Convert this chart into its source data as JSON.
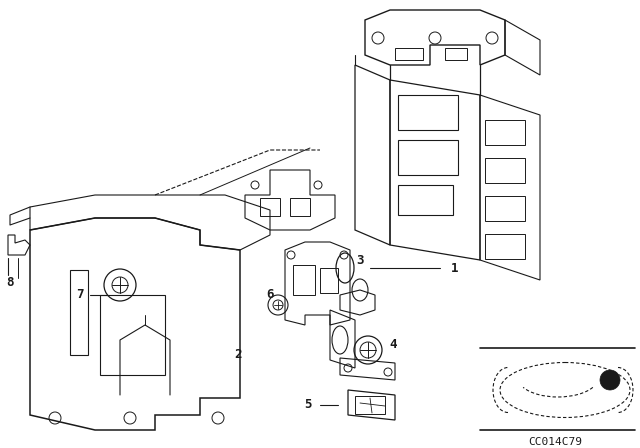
{
  "bg_color": "#ffffff",
  "line_color": "#1a1a1a",
  "part_code": "CC014C79",
  "fig_width": 6.4,
  "fig_height": 4.48,
  "dpi": 100
}
